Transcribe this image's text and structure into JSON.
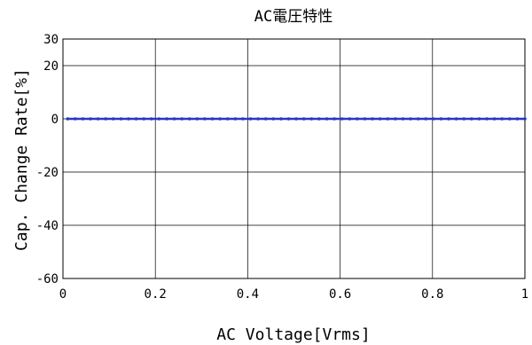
{
  "chart_data": {
    "type": "line",
    "title": "AC電圧特性",
    "xlabel": "AC Voltage[Vrms]",
    "ylabel": "Cap. Change Rate[%]",
    "xlim": [
      0,
      1
    ],
    "ylim": [
      -60,
      30
    ],
    "x_ticks": [
      0,
      0.2,
      0.4,
      0.6,
      0.8,
      1
    ],
    "x_tick_labels": [
      "0",
      "0.2",
      "0.4",
      "0.6",
      "0.8",
      "1"
    ],
    "y_ticks": [
      -60,
      -40,
      -20,
      0,
      20,
      30
    ],
    "y_tick_labels": [
      "-60",
      "-40",
      "-20",
      "0",
      "20",
      "30"
    ],
    "grid": true,
    "series": [
      {
        "color": "#2b35c8",
        "x": [
          0.01,
          0.1,
          0.2,
          0.3,
          0.4,
          0.5,
          0.6,
          0.7,
          0.8,
          0.9,
          1.0
        ],
        "y": [
          0,
          0,
          0,
          0,
          0,
          0,
          0,
          0,
          0,
          0,
          0
        ]
      }
    ]
  }
}
